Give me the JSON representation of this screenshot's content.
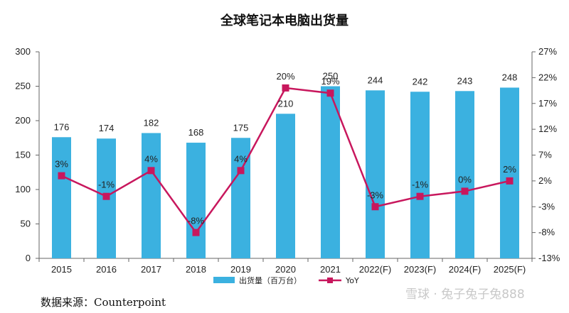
{
  "chart_data": {
    "type": "bar",
    "title": "全球笔记本电脑出货量",
    "categories": [
      "2015",
      "2016",
      "2017",
      "2018",
      "2019",
      "2020",
      "2021",
      "2022(F)",
      "2023(F)",
      "2024(F)",
      "2025(F)"
    ],
    "series": [
      {
        "name": "出货量（百万台）",
        "type": "bar",
        "axis": "left",
        "color": "#3bb1e0",
        "values": [
          176,
          174,
          182,
          168,
          175,
          210,
          250,
          244,
          242,
          243,
          248
        ],
        "labels": [
          "176",
          "174",
          "182",
          "168",
          "175",
          "210",
          "250",
          "244",
          "242",
          "243",
          "248"
        ]
      },
      {
        "name": "YoY",
        "type": "line",
        "axis": "right",
        "color": "#c8175d",
        "values": [
          3,
          -1,
          4,
          -8,
          4,
          20,
          19,
          -3,
          -1,
          0,
          2
        ],
        "labels": [
          "3%",
          "-1%",
          "4%",
          "-8%",
          "4%",
          "20%",
          "19%",
          "-3%",
          "-1%",
          "0%",
          "2%"
        ]
      }
    ],
    "ylim": [
      0,
      300
    ],
    "yticks": [
      "0",
      "50",
      "100",
      "150",
      "200",
      "250",
      "300"
    ],
    "y2lim": [
      -13,
      27
    ],
    "y2ticks": [
      "-13%",
      "-8%",
      "-3%",
      "2%",
      "7%",
      "12%",
      "17%",
      "22%",
      "27%"
    ],
    "legend": "bottom-center",
    "grid": false
  },
  "source": "数据来源：Counterpoint",
  "watermark": "雪球 · 兔子兔子兔888"
}
